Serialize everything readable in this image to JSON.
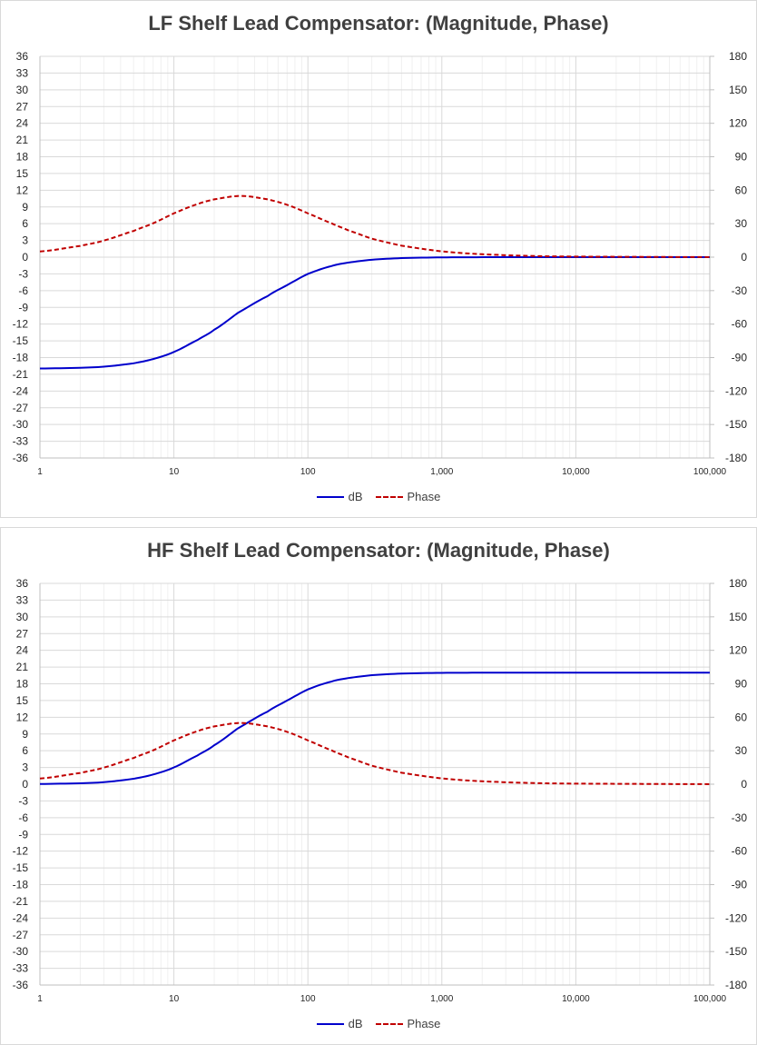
{
  "chart_data": [
    {
      "type": "line",
      "title": "LF Shelf Lead Compensator: (Magnitude, Phase)",
      "x_scale": "log",
      "xlim": [
        1,
        100000
      ],
      "x_ticks": [
        "1",
        "10",
        "100",
        "1,000",
        "10,000",
        "100,000"
      ],
      "ylim": [
        -36,
        36
      ],
      "y_ticks": [
        "36",
        "33",
        "30",
        "27",
        "24",
        "21",
        "18",
        "15",
        "12",
        "9",
        "6",
        "3",
        "0",
        "-3",
        "-6",
        "-9",
        "-12",
        "-15",
        "-18",
        "-21",
        "-24",
        "-27",
        "-30",
        "-33",
        "-36"
      ],
      "y2lim": [
        -180,
        180
      ],
      "y2_ticks": [
        "180",
        "150",
        "120",
        "90",
        "60",
        "30",
        "0",
        "-30",
        "-60",
        "-90",
        "-120",
        "-150",
        "-180"
      ],
      "grid": true,
      "legend": "bottom",
      "series": [
        {
          "name": "dB",
          "axis": "left",
          "color": "#0000cc",
          "style": "solid",
          "x": [
            1,
            2,
            3,
            5,
            7,
            10,
            15,
            20,
            30,
            50,
            70,
            100,
            150,
            200,
            300,
            500,
            1000,
            2000,
            5000,
            10000,
            100000
          ],
          "values": [
            -19.96,
            -19.83,
            -19.63,
            -19.03,
            -18.26,
            -16.99,
            -14.85,
            -13.01,
            -10.0,
            -6.99,
            -5.0,
            -3.01,
            -1.6,
            -0.97,
            -0.46,
            -0.17,
            -0.04,
            -0.01,
            0,
            0,
            0
          ]
        },
        {
          "name": "Phase",
          "axis": "right",
          "color": "#c00000",
          "style": "dashed",
          "x": [
            1,
            2,
            3,
            5,
            7,
            10,
            15,
            20,
            31.6,
            50,
            70,
            100,
            150,
            200,
            300,
            500,
            1000,
            2000,
            5000,
            10000,
            100000
          ],
          "values": [
            5.1,
            10.1,
            14.9,
            23.5,
            30.4,
            39.3,
            47.5,
            51.8,
            54.9,
            51.8,
            46.9,
            39.3,
            30.4,
            24.1,
            16.6,
            10.3,
            5.2,
            2.6,
            1.0,
            0.5,
            0.05
          ]
        }
      ]
    },
    {
      "type": "line",
      "title": "HF Shelf Lead Compensator: (Magnitude, Phase)",
      "x_scale": "log",
      "xlim": [
        1,
        100000
      ],
      "x_ticks": [
        "1",
        "10",
        "100",
        "1,000",
        "10,000",
        "100,000"
      ],
      "ylim": [
        -36,
        36
      ],
      "y_ticks": [
        "36",
        "33",
        "30",
        "27",
        "24",
        "21",
        "18",
        "15",
        "12",
        "9",
        "6",
        "3",
        "0",
        "-3",
        "-6",
        "-9",
        "-12",
        "-15",
        "-18",
        "-21",
        "-24",
        "-27",
        "-30",
        "-33",
        "-36"
      ],
      "y2lim": [
        -180,
        180
      ],
      "y2_ticks": [
        "180",
        "150",
        "120",
        "90",
        "60",
        "30",
        "0",
        "-30",
        "-60",
        "-90",
        "-120",
        "-150",
        "-180"
      ],
      "grid": true,
      "legend": "bottom",
      "series": [
        {
          "name": "dB",
          "axis": "left",
          "color": "#0000cc",
          "style": "solid",
          "x": [
            1,
            2,
            3,
            5,
            7,
            10,
            15,
            20,
            30,
            50,
            70,
            100,
            150,
            200,
            300,
            500,
            1000,
            2000,
            5000,
            10000,
            100000
          ],
          "values": [
            0.04,
            0.17,
            0.37,
            0.97,
            1.74,
            3.01,
            5.15,
            6.99,
            10.0,
            13.01,
            15.0,
            16.99,
            18.4,
            19.03,
            19.54,
            19.83,
            19.96,
            19.99,
            20.0,
            20.0,
            20.0
          ]
        },
        {
          "name": "Phase",
          "axis": "right",
          "color": "#c00000",
          "style": "dashed",
          "x": [
            1,
            2,
            3,
            5,
            7,
            10,
            15,
            20,
            31.6,
            50,
            70,
            100,
            150,
            200,
            300,
            500,
            1000,
            2000,
            5000,
            10000,
            100000
          ],
          "values": [
            5.1,
            10.1,
            14.9,
            23.5,
            30.4,
            39.3,
            47.5,
            51.8,
            54.9,
            51.8,
            46.9,
            39.3,
            30.4,
            24.1,
            16.6,
            10.3,
            5.2,
            2.6,
            1.0,
            0.5,
            0.05
          ]
        }
      ]
    }
  ]
}
